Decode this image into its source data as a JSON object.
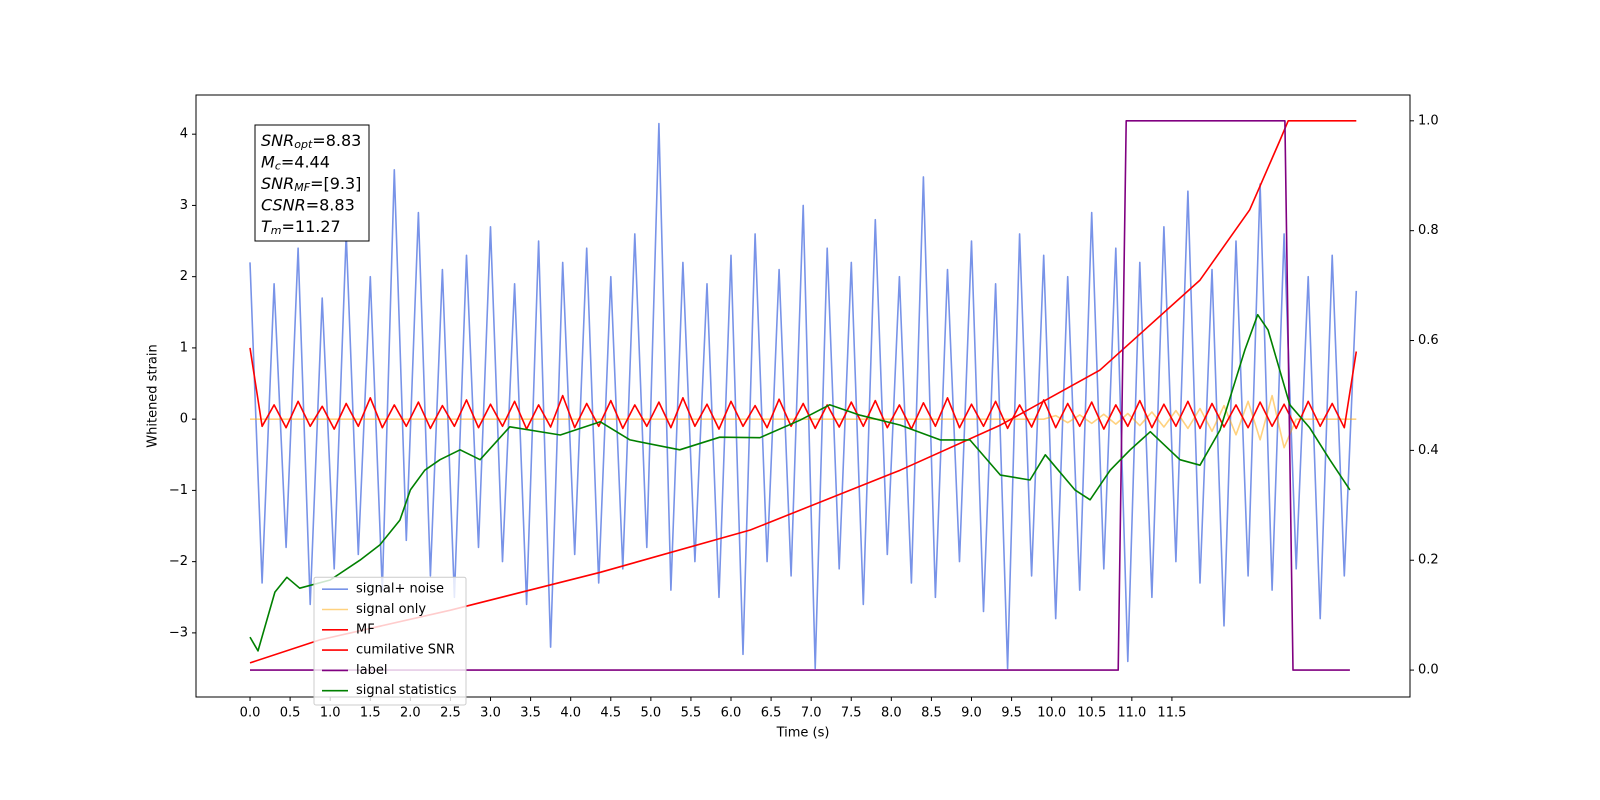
{
  "chart_data": {
    "type": "line",
    "xlabel": "Time (s)",
    "ylabel": "Whitened strain",
    "xlim": [
      -0.674,
      14.47
    ],
    "ylim": [
      -3.9,
      4.55
    ],
    "y2lim": [
      -0.049,
      1.047
    ],
    "xticks": [
      {
        "value": 0,
        "label": "0.0"
      },
      {
        "value": 0.5,
        "label": "0.5"
      },
      {
        "value": 1,
        "label": "1.0"
      },
      {
        "value": 1.5,
        "label": "1.5"
      },
      {
        "value": 2,
        "label": "2.0"
      },
      {
        "value": 2.5,
        "label": "2.5"
      },
      {
        "value": 3,
        "label": "3.0"
      },
      {
        "value": 3.5,
        "label": "3.5"
      },
      {
        "value": 4,
        "label": "4.0"
      },
      {
        "value": 4.5,
        "label": "4.5"
      },
      {
        "value": 5,
        "label": "5.0"
      },
      {
        "value": 5.5,
        "label": "5.5"
      },
      {
        "value": 6,
        "label": "6.0"
      },
      {
        "value": 6.5,
        "label": "6.5"
      },
      {
        "value": 7,
        "label": "7.0"
      },
      {
        "value": 7.5,
        "label": "7.5"
      },
      {
        "value": 8,
        "label": "8.0"
      },
      {
        "value": 8.5,
        "label": "8.5"
      },
      {
        "value": 9,
        "label": "9.0"
      },
      {
        "value": 9.5,
        "label": "9.5"
      },
      {
        "value": 10,
        "label": "10.0"
      },
      {
        "value": 10.5,
        "label": "10.5"
      },
      {
        "value": 11,
        "label": "11.0"
      },
      {
        "value": 11.5,
        "label": "11.5"
      }
    ],
    "yticks": [
      {
        "value": -3,
        "label": "−3"
      },
      {
        "value": -2,
        "label": "−2"
      },
      {
        "value": -1,
        "label": "−1"
      },
      0,
      1,
      2,
      3,
      4
    ],
    "y2ticks": [
      {
        "value": 0,
        "label": "0.0"
      },
      {
        "value": 0.2,
        "label": "0.2"
      },
      {
        "value": 0.4,
        "label": "0.4"
      },
      {
        "value": 0.6,
        "label": "0.6"
      },
      {
        "value": 0.8,
        "label": "0.8"
      },
      {
        "value": 1,
        "label": "1.0"
      }
    ],
    "grid": false,
    "legend": "lower left",
    "annotation": [
      {
        "var": "SNR",
        "sub": "opt",
        "rest": "=8.83"
      },
      {
        "var": "M",
        "sub": "c",
        "rest": "=4.44"
      },
      {
        "var": "SNR",
        "sub": "MF",
        "rest": "=[9.3]"
      },
      {
        "var": "CSNR",
        "rest": "=8.83"
      },
      {
        "var": "T",
        "sub": "m",
        "rest": "=11.27"
      }
    ],
    "x": [
      0,
      0.15,
      0.3,
      0.45,
      0.6,
      0.75,
      0.9,
      1.05,
      1.2,
      1.35,
      1.5,
      1.65,
      1.8,
      1.95,
      2.1,
      2.25,
      2.4,
      2.55,
      2.7,
      2.85,
      3,
      3.15,
      3.3,
      3.45,
      3.6,
      3.75,
      3.9,
      4.05,
      4.2,
      4.35,
      4.5,
      4.65,
      4.8,
      4.95,
      5.1,
      5.25,
      5.4,
      5.55,
      5.7,
      5.85,
      6,
      6.15,
      6.3,
      6.45,
      6.6,
      6.75,
      6.9,
      7.05,
      7.2,
      7.35,
      7.5,
      7.65,
      7.8,
      7.95,
      8.1,
      8.25,
      8.4,
      8.55,
      8.7,
      8.85,
      9,
      9.15,
      9.3,
      9.45,
      9.6,
      9.75,
      9.9,
      10.05,
      10.2,
      10.35,
      10.5,
      10.65,
      10.8,
      10.95,
      11.1,
      11.25,
      11.4,
      11.55,
      11.7,
      11.85,
      12,
      12.15,
      12.3,
      12.45,
      12.6,
      12.75,
      12.9,
      13.05,
      13.2,
      13.35,
      13.5,
      13.65,
      13.8
    ],
    "series": [
      {
        "name": "signal+ noise",
        "color": "#7893e8",
        "values": [
          2.2,
          -2.3,
          1.9,
          -1.8,
          2.4,
          -2.6,
          1.7,
          -2.1,
          2.6,
          -1.9,
          2.0,
          -2.4,
          3.5,
          -1.7,
          2.9,
          -2.2,
          2.1,
          -2.5,
          2.3,
          -1.8,
          2.7,
          -2.0,
          1.9,
          -2.6,
          2.5,
          -3.2,
          2.2,
          -1.9,
          2.4,
          -2.3,
          2.0,
          -2.1,
          2.6,
          -1.8,
          4.15,
          -2.4,
          2.2,
          -2.0,
          1.9,
          -2.5,
          2.3,
          -3.3,
          2.6,
          -2.0,
          2.1,
          -2.2,
          3.0,
          -3.5,
          2.4,
          -2.1,
          2.2,
          -2.6,
          2.8,
          -1.9,
          2.0,
          -2.3,
          3.4,
          -2.5,
          2.1,
          -2.0,
          2.5,
          -2.7,
          1.9,
          -3.5,
          2.6,
          -2.2,
          2.3,
          -2.8,
          2.0,
          -2.4,
          2.9,
          -2.1,
          2.4,
          -3.4,
          2.2,
          -2.5,
          2.7,
          -2.0,
          3.2,
          -2.3,
          2.1,
          -2.9,
          2.5,
          -2.2,
          3.3,
          -2.4,
          2.6,
          -2.1,
          2.0,
          -2.8,
          2.3,
          -2.2,
          1.8
        ]
      },
      {
        "name": "signal only",
        "color": "#ffa500",
        "alpha": 0.5,
        "values": [
          0,
          0,
          0,
          0,
          0,
          0,
          0,
          0,
          0,
          0,
          0,
          0,
          0,
          0,
          0,
          0,
          0,
          0,
          0,
          0,
          0,
          0,
          0,
          0,
          0,
          0,
          0,
          0,
          0,
          0,
          0,
          0,
          0,
          0,
          0,
          0,
          0,
          0,
          0,
          0,
          0,
          0,
          0,
          0,
          0,
          0,
          0,
          0,
          0,
          0,
          0,
          0,
          0,
          0,
          0,
          0,
          0,
          0,
          0,
          0,
          0,
          0,
          0,
          0,
          0,
          0,
          0,
          0.05,
          -0.05,
          0.06,
          -0.06,
          0.07,
          -0.07,
          0.08,
          -0.09,
          0.1,
          -0.11,
          0.12,
          -0.13,
          0.15,
          -0.17,
          0.19,
          -0.22,
          0.25,
          -0.29,
          0.33,
          -0.4,
          0,
          0,
          0,
          0,
          0,
          0
        ]
      },
      {
        "name": "MF",
        "color": "#ff0000",
        "values": [
          1.0,
          -0.1,
          0.2,
          -0.12,
          0.25,
          -0.1,
          0.18,
          -0.14,
          0.22,
          -0.1,
          0.3,
          -0.12,
          0.2,
          -0.1,
          0.24,
          -0.13,
          0.19,
          -0.1,
          0.27,
          -0.12,
          0.21,
          -0.1,
          0.25,
          -0.14,
          0.2,
          -0.11,
          0.33,
          -0.12,
          0.22,
          -0.1,
          0.26,
          -0.13,
          0.2,
          -0.1,
          0.24,
          -0.12,
          0.3,
          -0.1,
          0.21,
          -0.14,
          0.25,
          -0.1,
          0.19,
          -0.12,
          0.28,
          -0.1,
          0.22,
          -0.13,
          0.2,
          -0.11,
          0.24,
          -0.1,
          0.26,
          -0.12,
          0.2,
          -0.14,
          0.23,
          -0.1,
          0.3,
          -0.12,
          0.21,
          -0.1,
          0.25,
          -0.13,
          0.2,
          -0.11,
          0.27,
          -0.12,
          0.22,
          -0.1,
          0.24,
          -0.14,
          0.2,
          -0.1,
          0.26,
          -0.12,
          0.21,
          -0.1,
          0.25,
          -0.13,
          0.22,
          -0.11,
          0.2,
          -0.12,
          0.24,
          -0.1,
          0.21,
          -0.13,
          0.25,
          -0.1,
          0.22,
          -0.12,
          0.95
        ]
      },
      {
        "name": "cumilative SNR",
        "color": "#ff0000",
        "axis": "y2",
        "x": [
          0,
          0.87,
          2.5,
          4.37,
          6.24,
          8.11,
          9.36,
          10.6,
          11.85,
          12.47,
          12.85,
          12.95,
          13.8
        ],
        "values": [
          0.013,
          0.055,
          0.109,
          0.178,
          0.255,
          0.364,
          0.446,
          0.546,
          0.71,
          0.838,
          0.965,
          1.0,
          1.0
        ]
      },
      {
        "name": "label",
        "color": "#800080",
        "axis": "y2",
        "x": [
          0,
          10.83,
          10.93,
          12.91,
          13.01,
          13.72
        ],
        "values": [
          0,
          0,
          1,
          1,
          0,
          0
        ]
      },
      {
        "name": "signal statistics",
        "color": "#008000",
        "axis": "y2",
        "x": [
          0,
          0.1,
          0.31,
          0.46,
          0.62,
          1.0,
          1.37,
          1.62,
          1.87,
          2.0,
          2.18,
          2.37,
          2.62,
          2.87,
          3.24,
          3.87,
          4.37,
          4.74,
          5.36,
          5.86,
          6.36,
          6.86,
          7.23,
          7.61,
          8.11,
          8.61,
          8.98,
          9.36,
          9.73,
          9.92,
          10.29,
          10.48,
          10.73,
          10.98,
          11.23,
          11.6,
          11.85,
          12.1,
          12.41,
          12.57,
          12.7,
          12.97,
          13.22,
          13.47,
          13.72
        ],
        "values": [
          0.06,
          0.035,
          0.142,
          0.169,
          0.149,
          0.164,
          0.2,
          0.228,
          0.273,
          0.328,
          0.364,
          0.383,
          0.401,
          0.383,
          0.443,
          0.428,
          0.452,
          0.419,
          0.401,
          0.424,
          0.423,
          0.455,
          0.483,
          0.464,
          0.446,
          0.419,
          0.419,
          0.355,
          0.346,
          0.392,
          0.328,
          0.31,
          0.364,
          0.401,
          0.434,
          0.383,
          0.373,
          0.437,
          0.583,
          0.647,
          0.619,
          0.483,
          0.441,
          0.383,
          0.328
        ]
      }
    ]
  }
}
